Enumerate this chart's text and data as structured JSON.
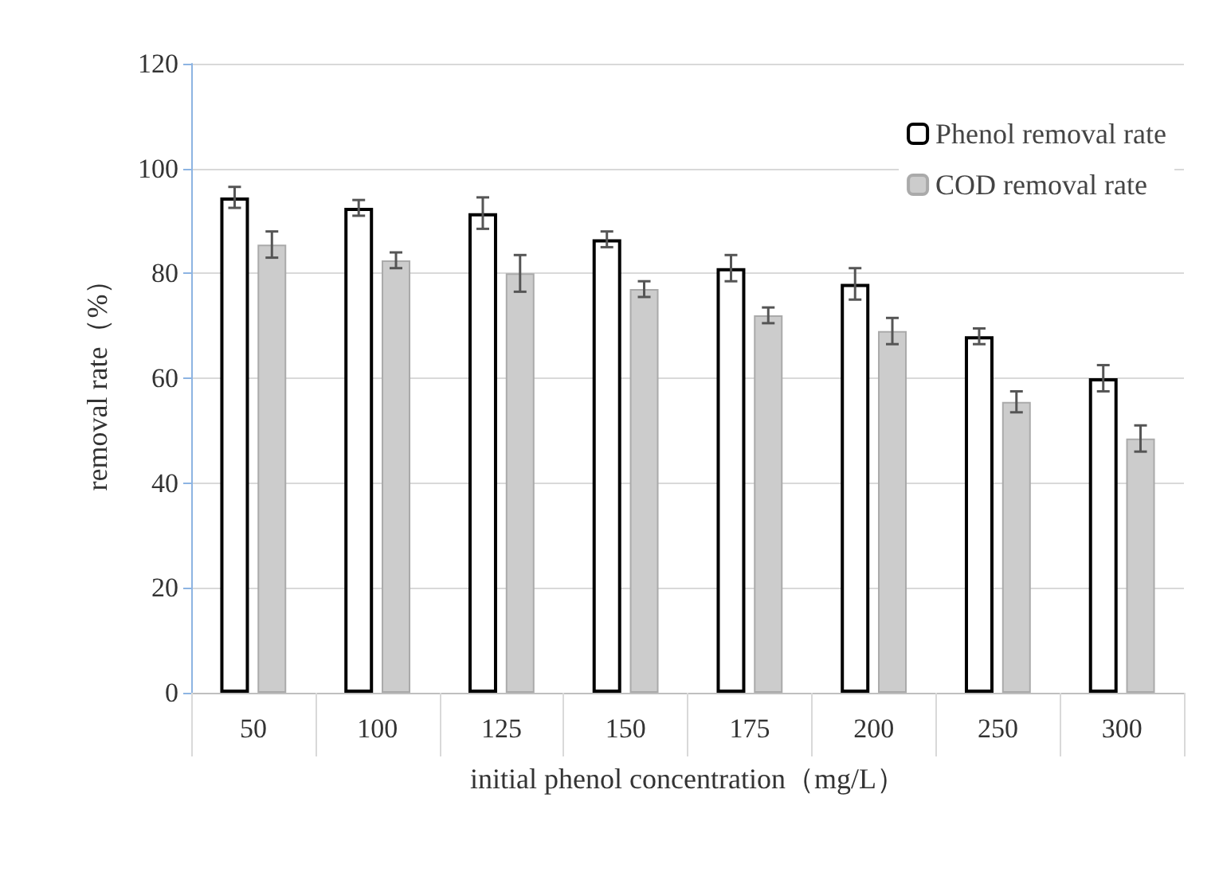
{
  "chart_data": {
    "type": "bar",
    "xlabel": "initial phenol concentration（mg/L）",
    "ylabel": "removal rate（%）",
    "categories": [
      "50",
      "100",
      "125",
      "150",
      "175",
      "200",
      "250",
      "300"
    ],
    "series": [
      {
        "name": "Phenol removal rate",
        "color": "#ffffff",
        "values": [
          94.5,
          92.5,
          91.5,
          86.5,
          81,
          78,
          68,
          60
        ],
        "errors": [
          2,
          1.5,
          3,
          1.5,
          2.5,
          3,
          1.5,
          2.5
        ]
      },
      {
        "name": "COD removal rate",
        "color": "#cccccc",
        "values": [
          85.5,
          82.5,
          80,
          77,
          72,
          69,
          55.5,
          48.5
        ],
        "errors": [
          2.5,
          1.5,
          3.5,
          1.5,
          1.5,
          2.5,
          2,
          2.5
        ]
      }
    ],
    "ylim": [
      0,
      120
    ],
    "yticks": [
      0,
      20,
      40,
      60,
      80,
      100,
      120
    ],
    "grid": "y",
    "legend": "top right"
  }
}
